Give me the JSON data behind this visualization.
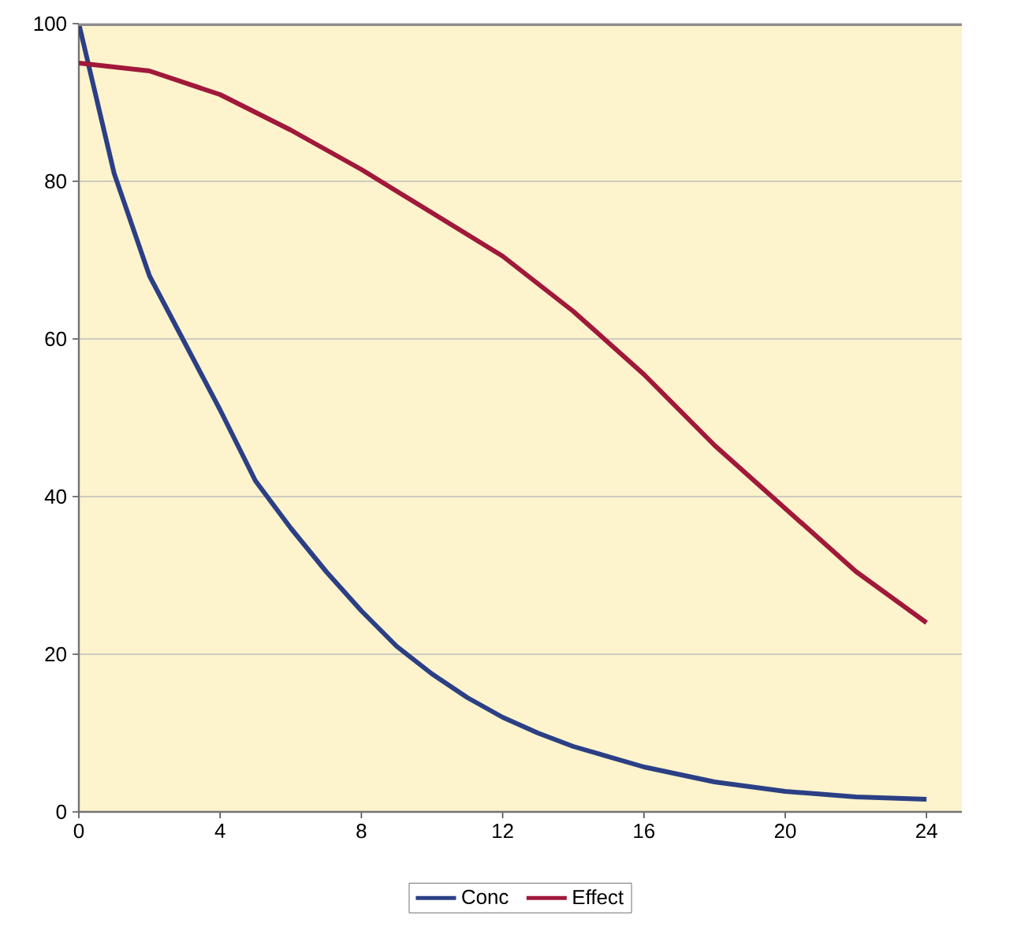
{
  "chart_data": {
    "type": "line",
    "x": [
      0,
      1,
      2,
      3,
      4,
      5,
      6,
      7,
      8,
      9,
      10,
      11,
      12,
      13,
      14,
      16,
      18,
      20,
      22,
      24
    ],
    "series": [
      {
        "name": "Conc",
        "color": "#2b3f85",
        "values": [
          100,
          81,
          68,
          59.5,
          51,
          42,
          36,
          30.5,
          25.5,
          21,
          17.5,
          14.5,
          12,
          10,
          8.3,
          5.7,
          3.8,
          2.6,
          1.9,
          1.6
        ]
      },
      {
        "name": "Effect",
        "color": "#a0183a",
        "x": [
          0,
          2,
          4,
          6,
          8,
          10,
          12,
          14,
          16,
          18,
          20,
          22,
          24
        ],
        "values": [
          95,
          94,
          91,
          86.5,
          81.5,
          76,
          70.5,
          63.5,
          55.5,
          46.5,
          38.5,
          30.5,
          24
        ]
      }
    ],
    "xlim": [
      0,
      25
    ],
    "xticks": [
      0,
      4,
      8,
      12,
      16,
      20,
      24
    ],
    "ylim": [
      0,
      100
    ],
    "yticks": [
      0,
      20,
      40,
      60,
      80,
      100
    ],
    "grid": "y",
    "legend": "bottom",
    "marker": "none",
    "line_style": "solid"
  }
}
